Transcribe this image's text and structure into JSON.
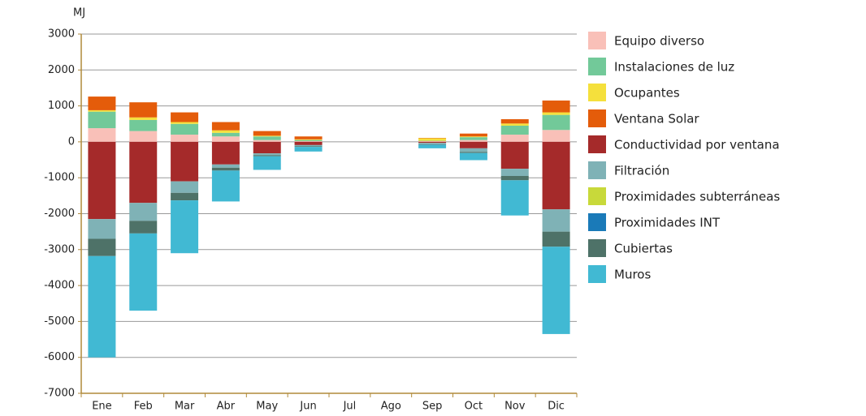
{
  "chart_data": {
    "type": "stacked_bar",
    "y_label": "MJ",
    "categories": [
      "Ene",
      "Feb",
      "Mar",
      "Abr",
      "May",
      "Jun",
      "Jul",
      "Ago",
      "Sep",
      "Oct",
      "Nov",
      "Dic"
    ],
    "series": [
      {
        "name": "Equipo diverso",
        "color": "#f9c0b8",
        "values": [
          380,
          300,
          200,
          150,
          50,
          20,
          0,
          0,
          20,
          50,
          200,
          330
        ]
      },
      {
        "name": "Instalaciones de luz",
        "color": "#72c999",
        "values": [
          460,
          310,
          300,
          100,
          100,
          30,
          0,
          0,
          10,
          80,
          250,
          420
        ]
      },
      {
        "name": "Ocupantes",
        "color": "#f5e03c",
        "values": [
          40,
          70,
          50,
          70,
          20,
          20,
          0,
          0,
          70,
          20,
          60,
          70
        ]
      },
      {
        "name": "Ventana Solar",
        "color": "#e45c0a",
        "values": [
          380,
          420,
          270,
          230,
          130,
          80,
          0,
          0,
          10,
          80,
          120,
          330
        ]
      },
      {
        "name": "Conductividad por ventana",
        "color": "#a52a2a",
        "values": [
          -2150,
          -1700,
          -1100,
          -630,
          -320,
          -90,
          0,
          0,
          -30,
          -180,
          -750,
          -1880
        ]
      },
      {
        "name": "Filtración",
        "color": "#7fb2b6",
        "values": [
          -550,
          -500,
          -320,
          -90,
          -50,
          -30,
          0,
          0,
          -40,
          -100,
          -200,
          -620
        ]
      },
      {
        "name": "Proximidades subterráneas",
        "color": "#c8d93a",
        "values": [
          0,
          0,
          0,
          0,
          0,
          0,
          0,
          0,
          0,
          0,
          0,
          0
        ]
      },
      {
        "name": "Proximidades INT",
        "color": "#1a7ab8",
        "values": [
          0,
          0,
          0,
          0,
          0,
          0,
          0,
          0,
          0,
          0,
          0,
          0
        ]
      },
      {
        "name": "Cubiertas",
        "color": "#4e7268",
        "values": [
          -480,
          -350,
          -210,
          -80,
          -30,
          -20,
          0,
          0,
          -10,
          -30,
          -120,
          -420
        ]
      },
      {
        "name": "Muros",
        "color": "#41b9d3",
        "values": [
          -2820,
          -2150,
          -1470,
          -860,
          -380,
          -130,
          0,
          0,
          -100,
          -200,
          -980,
          -2430
        ]
      }
    ],
    "ylim": [
      -7000,
      3000
    ],
    "yticks": [
      -7000,
      -6000,
      -5000,
      -4000,
      -3000,
      -2000,
      -1000,
      0,
      1000,
      2000,
      3000
    ],
    "grid": true
  }
}
